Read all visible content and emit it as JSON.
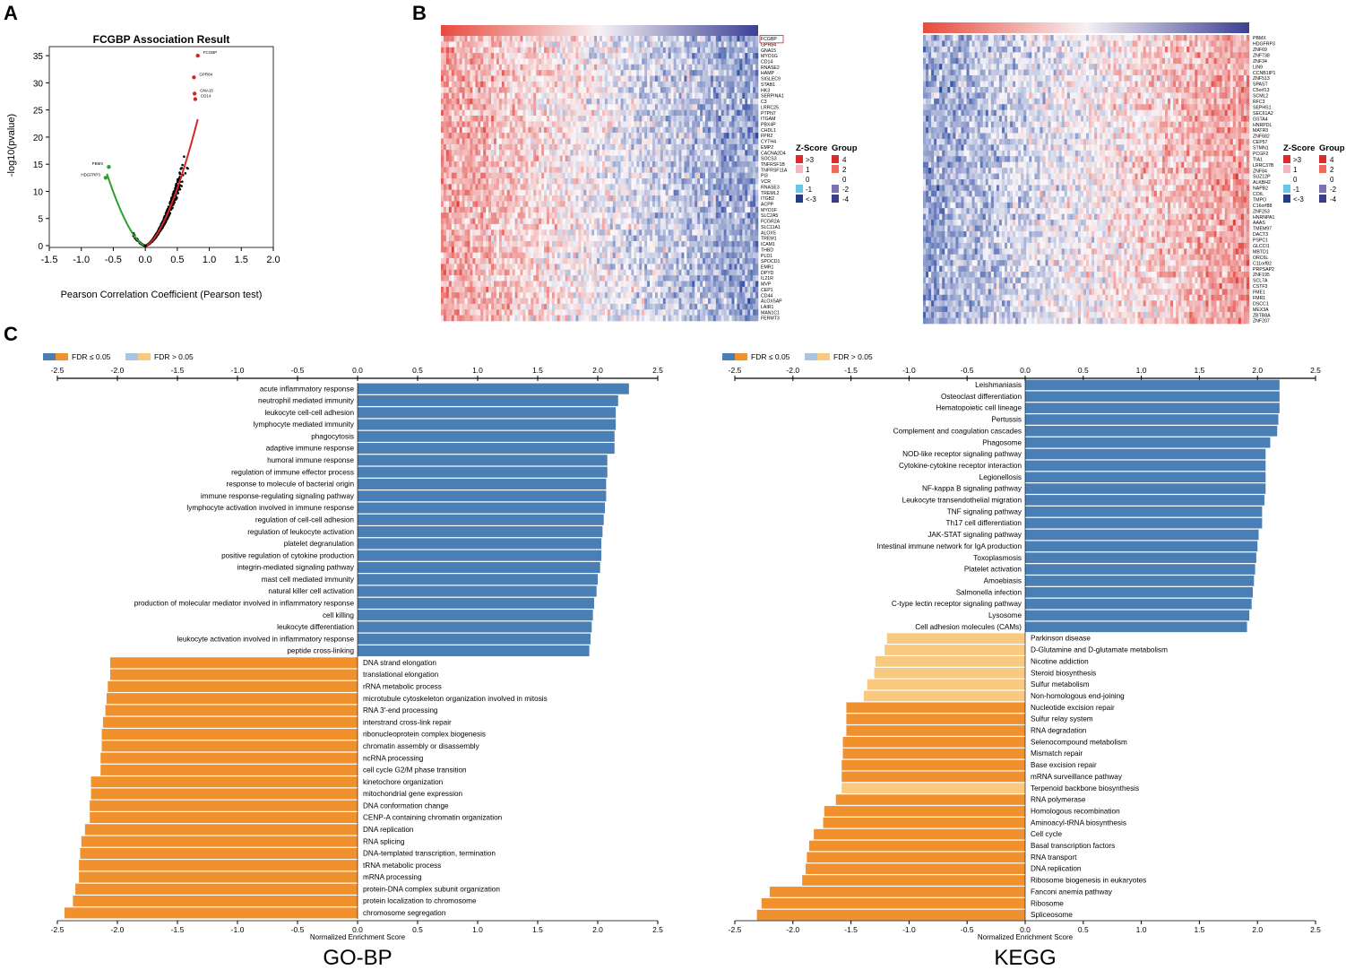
{
  "panels": {
    "a": "A",
    "b": "B",
    "c": "C"
  },
  "colors": {
    "blue_sig": "#4a7fb5",
    "blue_ns": "#a9c4e0",
    "orange_sig": "#f0912e",
    "orange_ns": "#f9c97f",
    "heat_red": "#e8433a",
    "heat_blue": "#2c3f9a"
  },
  "chart_data": [
    {
      "id": "volcano",
      "type": "scatter",
      "title": "FCGBP Association Result",
      "xlabel": "Pearson Correlation Coefficient (Pearson test)",
      "ylabel": "-log10(pvalue)",
      "xlim": [
        -1.5,
        2.0
      ],
      "ylim": [
        0,
        37
      ],
      "xticks": [
        "-1.5",
        "-1.0",
        "-0.5",
        "0.0",
        "0.5",
        "1.0",
        "1.5",
        "2.0"
      ],
      "yticks": [
        "0",
        "5",
        "10",
        "15",
        "20",
        "25",
        "30",
        "35"
      ],
      "highlight_points": [
        {
          "x": 0.82,
          "y": 35.0,
          "label": "FCGBP"
        },
        {
          "x": 0.76,
          "y": 31.0,
          "label": "GPR84"
        },
        {
          "x": 0.77,
          "y": 28.0,
          "label": "GNA15"
        },
        {
          "x": 0.78,
          "y": 27.0,
          "label": "CD14"
        },
        {
          "x": -0.57,
          "y": 14.5,
          "label": "PBMX"
        },
        {
          "x": -0.62,
          "y": 12.5,
          "label": "HDGFRP3"
        }
      ]
    },
    {
      "id": "heatmap-positive",
      "type": "heatmap",
      "genes": [
        "FCGBP",
        "GPR84",
        "GNA15",
        "MYO1G",
        "CD14",
        "RNASE2",
        "HAMP",
        "SIGLEC9",
        "STAB1",
        "HK3",
        "SERPINA1",
        "C3",
        "LRRC25",
        "PTPN7",
        "ITGAM",
        "PBX4P",
        "CHDL1",
        "FPR2",
        "CYTH4",
        "EMP2",
        "CACNA2D4",
        "SOCS3",
        "TNFRSF1B",
        "TNFRSF11A",
        "PI3",
        "VCR",
        "RNASE3",
        "TREML2",
        "ITGB2",
        "ACPP",
        "MYO1F",
        "SLC2A5",
        "FCGR2A",
        "SLC11A1",
        "ALOX5",
        "TREM1",
        "ICAM1",
        "THBD",
        "PLD1",
        "SPOCD1",
        "EMR1",
        "DPYD",
        "IL21R",
        "MVP",
        "CEP1",
        "CD44",
        "ALOX5AP",
        "LAIR1",
        "MAN1C1",
        "FERMT3"
      ],
      "highlight_gene": "FCGBP",
      "legend": {
        "zscore_title": "Z-Score",
        "group_title": "Group",
        "zscore_items": [
          ">3",
          "1",
          "0",
          "-1",
          "<-3"
        ],
        "group_items": [
          "4",
          "2",
          "0",
          "-2",
          "-4"
        ]
      }
    },
    {
      "id": "heatmap-negative",
      "type": "heatmap",
      "genes": [
        "PBMX",
        "HDGFRP3",
        "ZNF69",
        "ZNF738",
        "ZNF34",
        "LIN9",
        "CCNB1IP1",
        "ZNF513",
        "SPAST",
        "C5orf13",
        "SCML2",
        "RFC3",
        "SEPHS1",
        "SEC61A2",
        "GSTA4",
        "HNRPDL",
        "MATR3",
        "ZNF682",
        "CEP57",
        "STMN1",
        "PCGF2",
        "TIA1",
        "LRRC37B",
        "ZNF84",
        "SUZ12P",
        "ALKBH2",
        "NAPB2",
        "COIL",
        "TMPO",
        "C16orf88",
        "ZNF253",
        "HNRNPA1",
        "AAAS",
        "TMEM97",
        "DACT3",
        "PSPC1",
        "GLCCI1",
        "MBTD1",
        "ORC6L",
        "C11orf82",
        "PRPSAP2",
        "ZNF195",
        "SCL7A",
        "CSTF3",
        "FME1",
        "FMR1",
        "DSCC1",
        "MEX3A",
        "ZBTB8A",
        "ZNF207"
      ],
      "legend": {
        "zscore_title": "Z-Score",
        "group_title": "Group",
        "zscore_items": [
          ">3",
          "1",
          "0",
          "-1",
          "<-3"
        ],
        "group_items": [
          "4",
          "2",
          "0",
          "-2",
          "-4"
        ]
      }
    },
    {
      "id": "go-bp",
      "type": "bar",
      "orientation": "horizontal",
      "title": "GO-BP",
      "xlabel": "Normalized Enrichment Score",
      "xlim": [
        -2.5,
        2.5
      ],
      "xticks": [
        "-2.5",
        "-2.0",
        "-1.5",
        "-1.0",
        "-0.5",
        "0.0",
        "0.5",
        "1.0",
        "1.5",
        "2.0",
        "2.5"
      ],
      "legend": {
        "sig": "FDR ≤ 0.05",
        "ns": "FDR > 0.05"
      },
      "categories": [
        "acute inflammatory response",
        "neutrophil mediated immunity",
        "leukocyte cell-cell adhesion",
        "lymphocyte mediated immunity",
        "phagocytosis",
        "adaptive immune response",
        "humoral immune response",
        "regulation of immune effector process",
        "response to molecule of bacterial origin",
        "immune response-regulating signaling pathway",
        "lymphocyte activation involved in immune response",
        "regulation of cell-cell adhesion",
        "regulation of leukocyte activation",
        "platelet degranulation",
        "positive regulation of cytokine production",
        "integrin-mediated signaling pathway",
        "mast cell mediated immunity",
        "natural killer cell activation",
        "production of molecular mediator involved in inflammatory response",
        "cell killing",
        "leukocyte differentiation",
        "leukocyte activation involved in inflammatory response",
        "peptide cross-linking",
        "DNA strand elongation",
        "translational elongation",
        "rRNA metabolic process",
        "microtubule cytoskeleton organization involved in mitosis",
        "RNA 3'-end processing",
        "interstrand cross-link repair",
        "ribonucleoprotein complex biogenesis",
        "chromatin assembly or disassembly",
        "ncRNA processing",
        "cell cycle G2/M phase transition",
        "kinetochore organization",
        "mitochondrial gene expression",
        "DNA conformation change",
        "CENP-A containing chromatin organization",
        "DNA replication",
        "RNA splicing",
        "DNA-templated transcription, termination",
        "tRNA metabolic process",
        "mRNA processing",
        "protein-DNA complex subunit organization",
        "protein localization to chromosome",
        "chromosome segregation"
      ],
      "values": [
        2.26,
        2.17,
        2.15,
        2.15,
        2.14,
        2.14,
        2.08,
        2.08,
        2.07,
        2.07,
        2.06,
        2.05,
        2.04,
        2.03,
        2.03,
        2.02,
        2.0,
        1.99,
        1.97,
        1.96,
        1.95,
        1.94,
        1.93,
        -2.06,
        -2.06,
        -2.08,
        -2.09,
        -2.1,
        -2.12,
        -2.13,
        -2.13,
        -2.14,
        -2.14,
        -2.22,
        -2.22,
        -2.23,
        -2.23,
        -2.27,
        -2.3,
        -2.31,
        -2.32,
        -2.32,
        -2.35,
        -2.37,
        -2.44
      ],
      "significant": [
        true,
        true,
        true,
        true,
        true,
        true,
        true,
        true,
        true,
        true,
        true,
        true,
        true,
        true,
        true,
        true,
        true,
        true,
        true,
        true,
        true,
        true,
        true,
        true,
        true,
        true,
        true,
        true,
        true,
        true,
        true,
        true,
        true,
        true,
        true,
        true,
        true,
        true,
        true,
        true,
        true,
        true,
        true,
        true,
        true
      ]
    },
    {
      "id": "kegg",
      "type": "bar",
      "orientation": "horizontal",
      "title": "KEGG",
      "xlabel": "Normalized Enrichment Score",
      "xlim": [
        -2.5,
        2.5
      ],
      "xticks": [
        "-2.5",
        "-2.0",
        "-1.5",
        "-1.0",
        "-0.5",
        "0.0",
        "0.5",
        "1.0",
        "1.5",
        "2.0",
        "2.5"
      ],
      "legend": {
        "sig": "FDR ≤ 0.05",
        "ns": "FDR > 0.05"
      },
      "categories": [
        "Leishmaniasis",
        "Osteoclast differentiation",
        "Hematopoietic cell lineage",
        "Pertussis",
        "Complement and coagulation cascades",
        "Phagosome",
        "NOD-like receptor signaling pathway",
        "Cytokine-cytokine receptor interaction",
        "Legionellosis",
        "NF-kappa B signaling pathway",
        "Leukocyte transendothelial migration",
        "TNF signaling pathway",
        "Th17 cell differentiation",
        "JAK-STAT signaling pathway",
        "Intestinal immune network for IgA production",
        "Toxoplasmosis",
        "Platelet activation",
        "Amoebiasis",
        "Salmonella infection",
        "C-type lectin receptor signaling pathway",
        "Lysosome",
        "Cell adhesion molecules (CAMs)",
        "Parkinson disease",
        "D-Glutamine and D-glutamate metabolism",
        "Nicotine addiction",
        "Steroid biosynthesis",
        "Sulfur metabolism",
        "Non-homologous end-joining",
        "Nucleotide excision repair",
        "Sulfur relay system",
        "RNA degradation",
        "Selenocompound metabolism",
        "Mismatch repair",
        "Base excision repair",
        "mRNA surveillance pathway",
        "Terpenoid backbone biosynthesis",
        "RNA polymerase",
        "Homologous recombination",
        "Aminoacyl-tRNA biosynthesis",
        "Cell cycle",
        "Basal transcription factors",
        "RNA transport",
        "DNA replication",
        "Ribosome biogenesis in eukaryotes",
        "Fanconi anemia pathway",
        "Ribosome",
        "Spliceosome"
      ],
      "values": [
        2.19,
        2.19,
        2.19,
        2.18,
        2.17,
        2.11,
        2.07,
        2.07,
        2.07,
        2.07,
        2.06,
        2.04,
        2.04,
        2.01,
        2.0,
        1.99,
        1.98,
        1.97,
        1.96,
        1.95,
        1.93,
        1.91,
        -1.19,
        -1.21,
        -1.29,
        -1.3,
        -1.36,
        -1.39,
        -1.54,
        -1.54,
        -1.54,
        -1.57,
        -1.57,
        -1.58,
        -1.58,
        -1.58,
        -1.63,
        -1.73,
        -1.74,
        -1.82,
        -1.86,
        -1.88,
        -1.89,
        -1.92,
        -2.2,
        -2.27,
        -2.31
      ],
      "significant": [
        true,
        true,
        true,
        true,
        true,
        true,
        true,
        true,
        true,
        true,
        true,
        true,
        true,
        true,
        true,
        true,
        true,
        true,
        true,
        true,
        true,
        true,
        false,
        false,
        false,
        false,
        false,
        false,
        true,
        true,
        true,
        true,
        true,
        true,
        true,
        false,
        true,
        true,
        true,
        true,
        true,
        true,
        true,
        true,
        true,
        true,
        true
      ]
    }
  ]
}
